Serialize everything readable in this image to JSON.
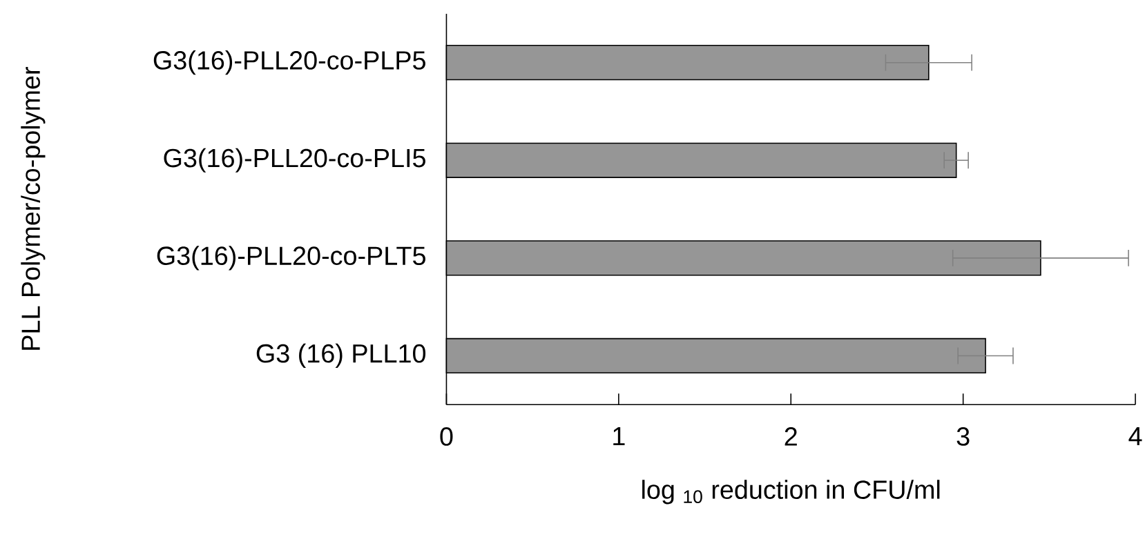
{
  "chart_data": {
    "type": "bar",
    "orientation": "horizontal",
    "categories": [
      "G3(16)-PLL20-co-PLP5",
      "G3(16)-PLL20-co-PLI5",
      "G3(16)-PLL20-co-PLT5",
      "G3 (16) PLL10"
    ],
    "values": [
      2.8,
      2.96,
      3.45,
      3.13
    ],
    "errors": [
      0.25,
      0.07,
      0.51,
      0.16
    ],
    "color": "#969696",
    "xlim": [
      0,
      4
    ],
    "xticks": [
      0,
      1,
      2,
      3,
      4
    ],
    "xlabel": "log $_{10}$ reduction in CFU/ml",
    "ylabel": "PLL Polymer/co-polymer"
  }
}
